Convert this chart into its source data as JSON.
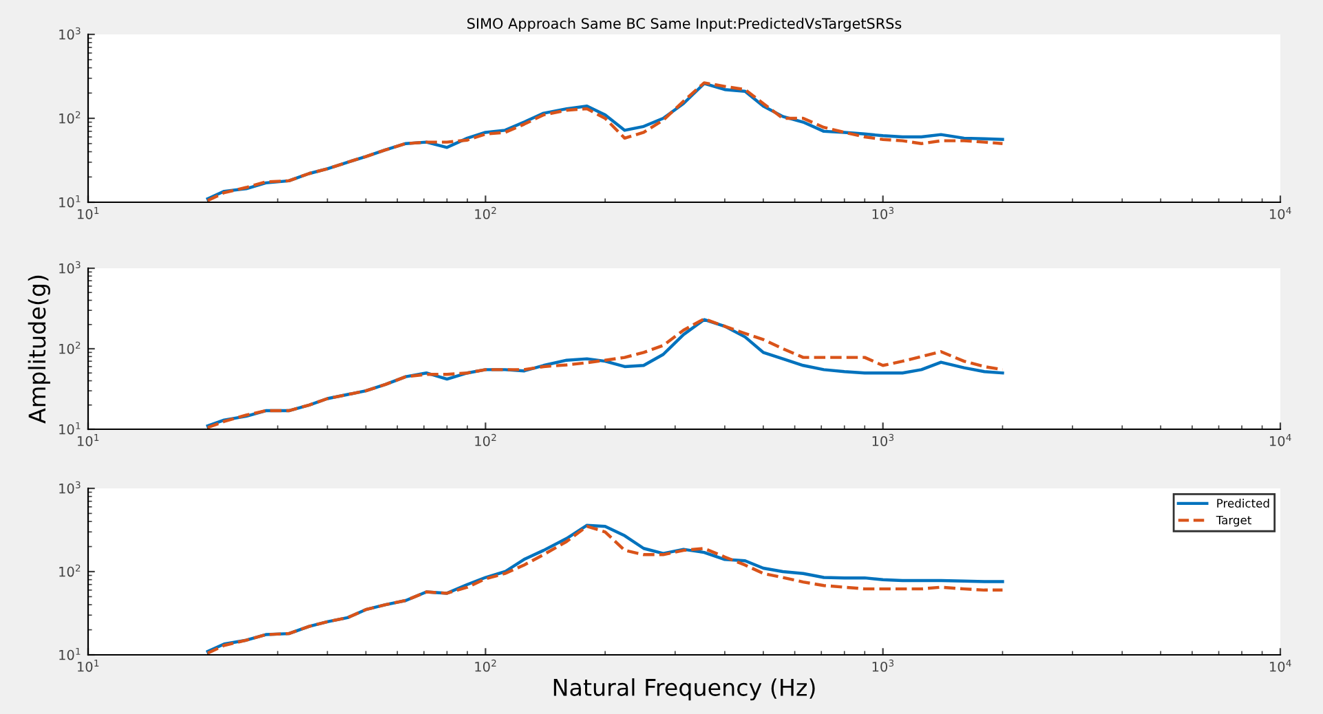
{
  "chart_data": [
    {
      "type": "line",
      "title": "SIMO Approach Same BC Same Input:PredictedVsTargetSRSs",
      "x": [
        20,
        22,
        25,
        28,
        32,
        36,
        40,
        45,
        50,
        56,
        63,
        71,
        80,
        90,
        100,
        112,
        125,
        140,
        160,
        180,
        200,
        224,
        250,
        280,
        315,
        355,
        400,
        450,
        500,
        560,
        630,
        710,
        800,
        900,
        1000,
        1120,
        1250,
        1400,
        1600,
        1800,
        2000
      ],
      "series": [
        {
          "color": "#0072bd",
          "line_style": "solid",
          "values": [
            11,
            13.5,
            14.5,
            17,
            18,
            22,
            25,
            30,
            35,
            42,
            50,
            52,
            45,
            58,
            68,
            72,
            90,
            115,
            130,
            140,
            110,
            72,
            80,
            100,
            150,
            260,
            220,
            210,
            140,
            105,
            90,
            70,
            68,
            65,
            62,
            60,
            60,
            64,
            58,
            57,
            56
          ]
        },
        {
          "color": "#d95319",
          "line_style": "dashed",
          "values": [
            10.5,
            13,
            15,
            17.5,
            18,
            22,
            25,
            30,
            35,
            42,
            50,
            52,
            52,
            55,
            65,
            68,
            85,
            110,
            125,
            130,
            100,
            58,
            68,
            95,
            160,
            265,
            240,
            220,
            150,
            100,
            100,
            78,
            68,
            60,
            56,
            54,
            50,
            54,
            54,
            52,
            50
          ]
        }
      ],
      "log": "xy",
      "xlim": [
        10,
        10000
      ],
      "ylim": [
        10,
        1000
      ],
      "xticks": [
        {
          "value": 10,
          "label": "10$^{1}$"
        },
        {
          "value": 100,
          "label": "10$^{2}$"
        },
        {
          "value": 1000,
          "label": "10$^{3}$"
        },
        {
          "value": 10000,
          "label": "10$^{4}$"
        }
      ],
      "yticks": [
        {
          "value": 10,
          "label": "10$^{1}$"
        },
        {
          "value": 100,
          "label": "10$^{2}$"
        },
        {
          "value": 1000,
          "label": "10$^{3}$"
        }
      ],
      "grid": false,
      "legend": false,
      "marker": "none"
    },
    {
      "type": "line",
      "ylabel": "Amplitude(g)",
      "x": [
        20,
        22,
        25,
        28,
        32,
        36,
        40,
        45,
        50,
        56,
        63,
        71,
        80,
        90,
        100,
        112,
        125,
        140,
        160,
        180,
        200,
        224,
        250,
        280,
        315,
        355,
        400,
        450,
        500,
        560,
        630,
        710,
        800,
        900,
        1000,
        1120,
        1250,
        1400,
        1600,
        1800,
        2000
      ],
      "series": [
        {
          "color": "#0072bd",
          "line_style": "solid",
          "values": [
            11,
            13,
            14.5,
            17,
            17,
            20,
            24,
            27,
            30,
            36,
            45,
            50,
            42,
            50,
            55,
            55,
            53,
            62,
            72,
            75,
            70,
            60,
            62,
            85,
            150,
            230,
            190,
            140,
            90,
            75,
            62,
            55,
            52,
            50,
            50,
            50,
            55,
            68,
            58,
            52,
            50
          ]
        },
        {
          "color": "#d95319",
          "line_style": "dashed",
          "values": [
            10.5,
            12.5,
            15,
            17,
            17,
            20,
            24,
            27,
            30,
            36,
            45,
            48,
            48,
            50,
            55,
            55,
            55,
            60,
            63,
            67,
            72,
            78,
            90,
            110,
            170,
            235,
            190,
            155,
            130,
            100,
            78,
            78,
            78,
            78,
            62,
            70,
            80,
            92,
            70,
            60,
            55
          ]
        }
      ],
      "log": "xy",
      "xlim": [
        10,
        10000
      ],
      "ylim": [
        10,
        1000
      ],
      "xticks": [
        {
          "value": 10,
          "label": "10$^{1}$"
        },
        {
          "value": 100,
          "label": "10$^{2}$"
        },
        {
          "value": 1000,
          "label": "10$^{3}$"
        },
        {
          "value": 10000,
          "label": "10$^{4}$"
        }
      ],
      "yticks": [
        {
          "value": 10,
          "label": "10$^{1}$"
        },
        {
          "value": 100,
          "label": "10$^{2}$"
        },
        {
          "value": 1000,
          "label": "10$^{3}$"
        }
      ],
      "grid": false,
      "legend": false,
      "marker": "none"
    },
    {
      "type": "line",
      "xlabel": "Natural Frequency (Hz)",
      "x": [
        20,
        22,
        25,
        28,
        32,
        36,
        40,
        45,
        50,
        56,
        63,
        71,
        80,
        90,
        100,
        112,
        125,
        140,
        160,
        180,
        200,
        224,
        250,
        280,
        315,
        355,
        400,
        450,
        500,
        560,
        630,
        710,
        800,
        900,
        1000,
        1120,
        1250,
        1400,
        1600,
        1800,
        2000
      ],
      "series": [
        {
          "name": "Predicted",
          "color": "#0072bd",
          "line_style": "solid",
          "values": [
            11,
            13.5,
            15,
            17.5,
            18,
            22,
            25,
            28,
            35,
            40,
            45,
            57,
            55,
            70,
            85,
            100,
            140,
            180,
            250,
            360,
            350,
            270,
            190,
            165,
            185,
            170,
            140,
            135,
            110,
            100,
            95,
            85,
            84,
            84,
            80,
            78,
            78,
            78,
            77,
            76,
            76
          ]
        },
        {
          "name": "Target",
          "color": "#d95319",
          "line_style": "dashed",
          "values": [
            10.5,
            13,
            15,
            17.5,
            18,
            22,
            25,
            28,
            35,
            40,
            45,
            57,
            55,
            65,
            82,
            95,
            120,
            160,
            230,
            350,
            300,
            180,
            160,
            160,
            180,
            190,
            150,
            120,
            95,
            85,
            75,
            68,
            65,
            62,
            62,
            62,
            62,
            65,
            62,
            60,
            60
          ]
        }
      ],
      "log": "xy",
      "xlim": [
        10,
        10000
      ],
      "ylim": [
        10,
        1000
      ],
      "xticks": [
        {
          "value": 10,
          "label": "10$^{1}$"
        },
        {
          "value": 100,
          "label": "10$^{2}$"
        },
        {
          "value": 1000,
          "label": "10$^{3}$"
        },
        {
          "value": 10000,
          "label": "10$^{4}$"
        }
      ],
      "yticks": [
        {
          "value": 10,
          "label": "10$^{1}$"
        },
        {
          "value": 100,
          "label": "10$^{2}$"
        },
        {
          "value": 1000,
          "label": "10$^{3}$"
        }
      ],
      "grid": false,
      "legend": "top right",
      "marker": "none"
    }
  ]
}
